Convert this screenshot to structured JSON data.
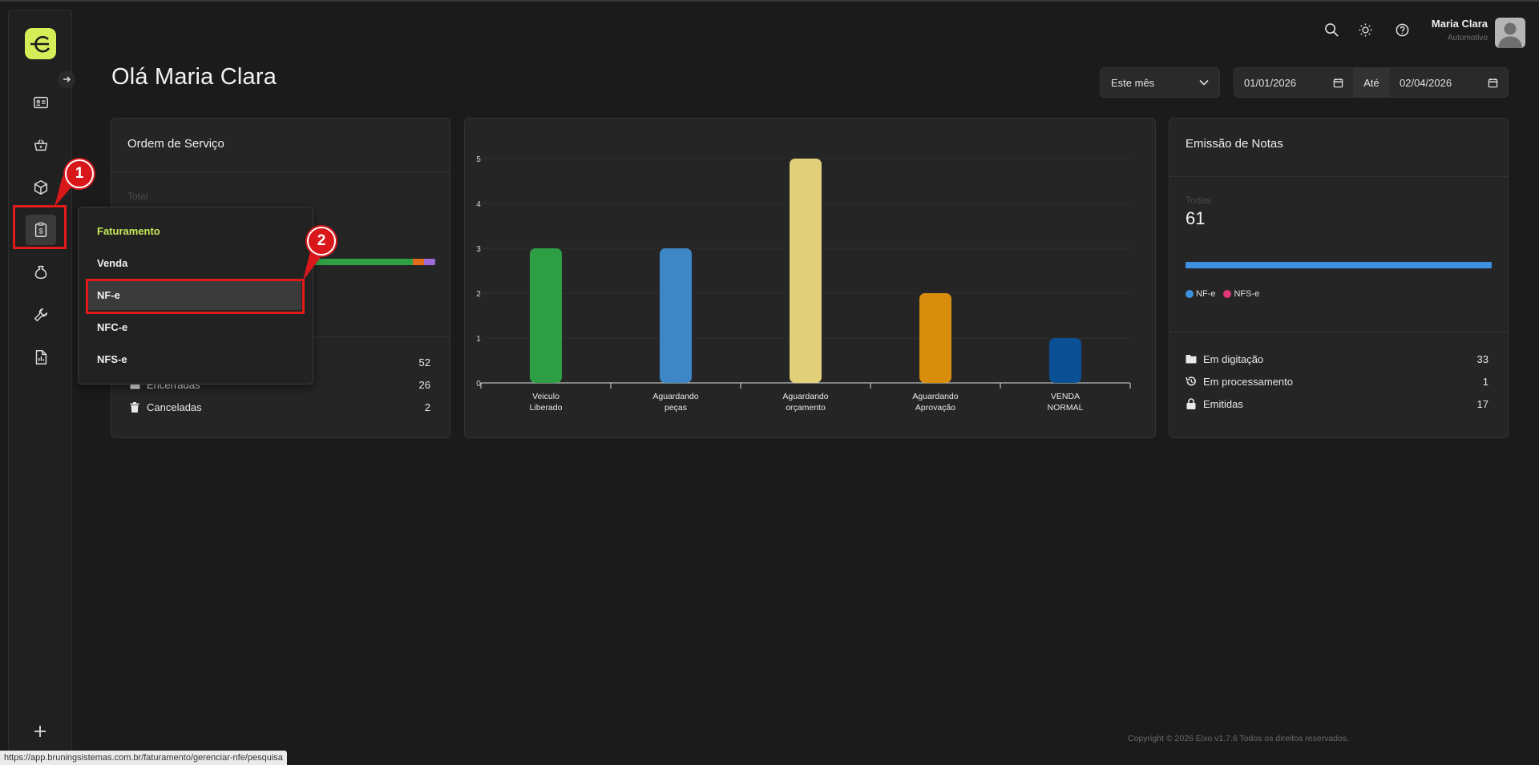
{
  "header": {
    "greeting": "Olá Maria Clara",
    "user_name": "Maria Clara",
    "user_subtitle": "Automotivo"
  },
  "filters": {
    "period": "Este mês",
    "date_from": "01/01/2026",
    "separator": "Até",
    "date_to": "02/04/2026"
  },
  "os_card": {
    "title": "Ordem de Serviço",
    "total_label": "Total",
    "rows": [
      {
        "label": "Encerradas",
        "count": "26"
      },
      {
        "label": "Canceladas",
        "count": "2"
      }
    ],
    "hidden_count": "52",
    "bar_colors": [
      "#2ea043",
      "#e06b1b",
      "#a06bd9"
    ]
  },
  "menu": {
    "header": "Faturamento",
    "items": [
      "Venda",
      "NF-e",
      "NFC-e",
      "NFS-e"
    ]
  },
  "chart_data": {
    "type": "bar",
    "categories": [
      "Veículo Liberado",
      "Aguardando peças",
      "Aguardando orçamento",
      "Aguardando Aprovação",
      "VENDA NORMAL"
    ],
    "category_lines": [
      [
        "Veiculo",
        "Liberado"
      ],
      [
        "Aguardando",
        "peças"
      ],
      [
        "Aguardando",
        "orçamento"
      ],
      [
        "Aguardando",
        "Aprovação"
      ],
      [
        "VENDA",
        "NORMAL"
      ]
    ],
    "values": [
      3,
      3,
      5,
      2,
      1
    ],
    "colors": [
      "#2e9e44",
      "#3d87c7",
      "#e1cf79",
      "#d88e0c",
      "#0b4f94"
    ],
    "ylim": [
      0,
      5
    ],
    "yticks": [
      "0",
      "1",
      "2",
      "3",
      "4",
      "5"
    ],
    "grid": true
  },
  "notes_card": {
    "title": "Emissão de Notas",
    "total_label": "Todas",
    "total_value": "61",
    "legend": [
      {
        "label": "NF-e",
        "color": "#3d8fe0"
      },
      {
        "label": "NFS-e",
        "color": "#e0367a"
      }
    ],
    "rows": [
      {
        "label": "Em digitação",
        "count": "33",
        "icon": "folder-icon"
      },
      {
        "label": "Em processamento",
        "count": "1",
        "icon": "history-icon"
      },
      {
        "label": "Emitidas",
        "count": "17",
        "icon": "lock-icon"
      }
    ]
  },
  "annotations": {
    "badge1": "1",
    "badge2": "2"
  },
  "footer": "Copyright © 2026 Eixo v1.7.6 Todos os direitos reservados.",
  "status_url": "https://app.bruningsistemas.com.br/faturamento/gerenciar-nfe/pesquisa"
}
